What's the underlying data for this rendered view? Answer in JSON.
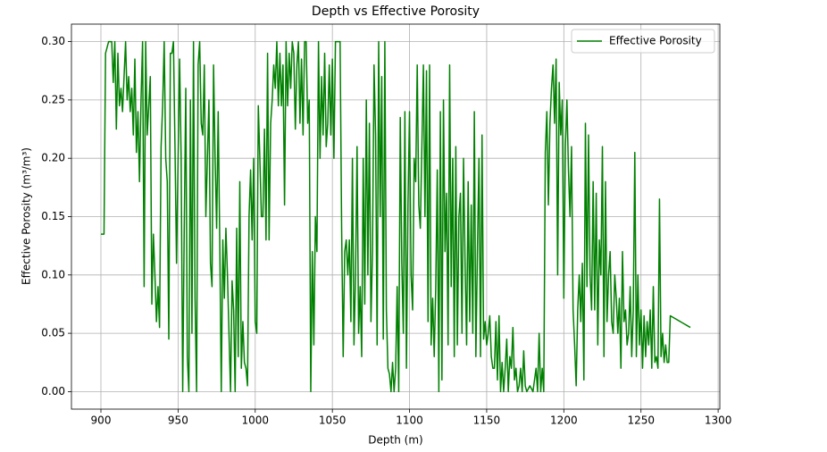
{
  "chart_data": {
    "type": "line",
    "title": "Depth vs Effective Porosity",
    "x_label": "Depth (m)",
    "y_label": "Effective Porosity (m³/m³)",
    "x": [
      900,
      902,
      903,
      905,
      907,
      908,
      909,
      910,
      911,
      912,
      913,
      914,
      916,
      917,
      918,
      919,
      920,
      921,
      922,
      923,
      924,
      925,
      926,
      927,
      928,
      929,
      930,
      932,
      933,
      934,
      935,
      936,
      937,
      938,
      939,
      940,
      941,
      942,
      943,
      944,
      945,
      946,
      947,
      948,
      949,
      951,
      952,
      953,
      954,
      955,
      956,
      957,
      958,
      959,
      960,
      961,
      962,
      963,
      964,
      965,
      966,
      967,
      968,
      969,
      970,
      971,
      972,
      973,
      974,
      975,
      976,
      977,
      978,
      979,
      980,
      981,
      982,
      983,
      984,
      985,
      986,
      987,
      988,
      989,
      990,
      991,
      992,
      993,
      994,
      995,
      996,
      997,
      998,
      999,
      1000,
      1001,
      1002,
      1003,
      1004,
      1005,
      1006,
      1007,
      1008,
      1009,
      1010,
      1011,
      1012,
      1013,
      1014,
      1015,
      1016,
      1017,
      1018,
      1019,
      1020,
      1021,
      1022,
      1023,
      1024,
      1025,
      1026,
      1027,
      1028,
      1029,
      1030,
      1031,
      1032,
      1033,
      1034,
      1035,
      1036,
      1037,
      1038,
      1039,
      1040,
      1041,
      1042,
      1043,
      1044,
      1045,
      1046,
      1047,
      1048,
      1049,
      1050,
      1051,
      1052,
      1054,
      1055,
      1056,
      1057,
      1058,
      1059,
      1060,
      1061,
      1062,
      1063,
      1064,
      1065,
      1066,
      1067,
      1068,
      1069,
      1070,
      1071,
      1072,
      1073,
      1074,
      1075,
      1076,
      1077,
      1078,
      1079,
      1080,
      1081,
      1082,
      1083,
      1084,
      1085,
      1086,
      1087,
      1088,
      1089,
      1090,
      1091,
      1092,
      1093,
      1094,
      1095,
      1096,
      1097,
      1098,
      1099,
      1100,
      1101,
      1102,
      1103,
      1104,
      1105,
      1106,
      1107,
      1108,
      1109,
      1110,
      1111,
      1112,
      1113,
      1114,
      1115,
      1116,
      1117,
      1118,
      1119,
      1120,
      1121,
      1122,
      1123,
      1124,
      1125,
      1126,
      1127,
      1128,
      1129,
      1130,
      1131,
      1132,
      1133,
      1134,
      1135,
      1136,
      1137,
      1138,
      1139,
      1140,
      1141,
      1142,
      1143,
      1144,
      1145,
      1146,
      1147,
      1148,
      1149,
      1150,
      1151,
      1152,
      1153,
      1154,
      1155,
      1156,
      1157,
      1158,
      1159,
      1160,
      1161,
      1162,
      1163,
      1164,
      1165,
      1166,
      1167,
      1168,
      1169,
      1170,
      1171,
      1172,
      1173,
      1174,
      1175,
      1176,
      1178,
      1180,
      1182,
      1183,
      1184,
      1185,
      1186,
      1187,
      1188,
      1189,
      1190,
      1191,
      1192,
      1193,
      1194,
      1195,
      1196,
      1197,
      1198,
      1199,
      1200,
      1201,
      1202,
      1203,
      1204,
      1205,
      1206,
      1207,
      1208,
      1209,
      1210,
      1211,
      1212,
      1213,
      1214,
      1215,
      1216,
      1217,
      1218,
      1219,
      1220,
      1221,
      1222,
      1223,
      1224,
      1225,
      1226,
      1227,
      1228,
      1229,
      1230,
      1231,
      1232,
      1233,
      1234,
      1235,
      1236,
      1237,
      1238,
      1239,
      1240,
      1241,
      1242,
      1243,
      1244,
      1245,
      1246,
      1247,
      1248,
      1249,
      1250,
      1251,
      1252,
      1253,
      1254,
      1255,
      1256,
      1257,
      1258,
      1259,
      1260,
      1261,
      1262,
      1263,
      1264,
      1265,
      1266,
      1267,
      1268,
      1269,
      1282
    ],
    "series": [
      {
        "name": "Effective Porosity",
        "color": "#008000",
        "values": [
          0.135,
          0.135,
          0.29,
          0.3,
          0.3,
          0.265,
          0.3,
          0.225,
          0.29,
          0.245,
          0.26,
          0.24,
          0.3,
          0.25,
          0.27,
          0.24,
          0.26,
          0.22,
          0.285,
          0.205,
          0.24,
          0.18,
          0.25,
          0.3,
          0.09,
          0.3,
          0.22,
          0.27,
          0.075,
          0.135,
          0.1,
          0.06,
          0.09,
          0.055,
          0.21,
          0.245,
          0.3,
          0.2,
          0.18,
          0.045,
          0.29,
          0.29,
          0.3,
          0.21,
          0.11,
          0.285,
          0.2,
          0.0,
          0.14,
          0.26,
          0.03,
          0.0,
          0.25,
          0.05,
          0.3,
          0.08,
          0.0,
          0.28,
          0.3,
          0.23,
          0.22,
          0.28,
          0.15,
          0.2,
          0.25,
          0.11,
          0.09,
          0.28,
          0.2,
          0.14,
          0.24,
          0.13,
          0.0,
          0.13,
          0.08,
          0.14,
          0.1,
          0.05,
          0.0,
          0.095,
          0.07,
          0.0,
          0.14,
          0.03,
          0.18,
          0.02,
          0.06,
          0.025,
          0.02,
          0.005,
          0.15,
          0.19,
          0.13,
          0.2,
          0.06,
          0.05,
          0.245,
          0.2,
          0.15,
          0.15,
          0.225,
          0.13,
          0.29,
          0.13,
          0.23,
          0.25,
          0.28,
          0.26,
          0.3,
          0.245,
          0.29,
          0.245,
          0.28,
          0.16,
          0.3,
          0.245,
          0.29,
          0.26,
          0.3,
          0.29,
          0.225,
          0.28,
          0.3,
          0.23,
          0.285,
          0.22,
          0.3,
          0.3,
          0.23,
          0.25,
          0.0,
          0.12,
          0.04,
          0.15,
          0.12,
          0.3,
          0.2,
          0.27,
          0.22,
          0.29,
          0.21,
          0.23,
          0.28,
          0.22,
          0.285,
          0.2,
          0.3,
          0.3,
          0.3,
          0.14,
          0.03,
          0.12,
          0.13,
          0.1,
          0.13,
          0.06,
          0.2,
          0.04,
          0.1,
          0.21,
          0.05,
          0.09,
          0.03,
          0.2,
          0.075,
          0.25,
          0.1,
          0.23,
          0.06,
          0.12,
          0.28,
          0.22,
          0.04,
          0.3,
          0.15,
          0.27,
          0.045,
          0.3,
          0.07,
          0.02,
          0.015,
          0.0,
          0.025,
          0.0,
          0.02,
          0.09,
          0.0,
          0.235,
          0.11,
          0.05,
          0.24,
          0.02,
          0.16,
          0.24,
          0.1,
          0.07,
          0.2,
          0.18,
          0.28,
          0.16,
          0.14,
          0.21,
          0.28,
          0.15,
          0.275,
          0.06,
          0.28,
          0.04,
          0.08,
          0.03,
          0.09,
          0.19,
          0.0,
          0.24,
          0.01,
          0.25,
          0.12,
          0.17,
          0.04,
          0.28,
          0.09,
          0.2,
          0.03,
          0.21,
          0.04,
          0.15,
          0.17,
          0.05,
          0.2,
          0.11,
          0.04,
          0.18,
          0.06,
          0.16,
          0.05,
          0.24,
          0.03,
          0.12,
          0.2,
          0.03,
          0.22,
          0.045,
          0.06,
          0.04,
          0.05,
          0.065,
          0.03,
          0.02,
          0.02,
          0.06,
          0.01,
          0.065,
          0.0,
          0.025,
          0.0,
          0.02,
          0.045,
          0.0,
          0.03,
          0.02,
          0.055,
          0.01,
          0.02,
          0.0,
          0.005,
          0.02,
          0.0,
          0.035,
          0.005,
          0.0,
          0.005,
          0.0,
          0.02,
          0.0,
          0.05,
          0.0,
          0.02,
          0.0,
          0.205,
          0.24,
          0.16,
          0.23,
          0.26,
          0.28,
          0.23,
          0.285,
          0.1,
          0.265,
          0.22,
          0.25,
          0.08,
          0.21,
          0.25,
          0.19,
          0.15,
          0.21,
          0.07,
          0.04,
          0.005,
          0.07,
          0.1,
          0.06,
          0.11,
          0.01,
          0.23,
          0.09,
          0.22,
          0.1,
          0.07,
          0.18,
          0.07,
          0.17,
          0.04,
          0.13,
          0.1,
          0.21,
          0.03,
          0.18,
          0.06,
          0.1,
          0.12,
          0.06,
          0.05,
          0.1,
          0.08,
          0.05,
          0.08,
          0.02,
          0.12,
          0.06,
          0.07,
          0.04,
          0.05,
          0.09,
          0.03,
          0.07,
          0.205,
          0.03,
          0.1,
          0.04,
          0.07,
          0.02,
          0.065,
          0.03,
          0.06,
          0.04,
          0.07,
          0.02,
          0.09,
          0.025,
          0.03,
          0.02,
          0.165,
          0.03,
          0.05,
          0.025,
          0.04,
          0.025,
          0.025,
          0.065,
          0.055
        ]
      }
    ],
    "xlim": [
      880.9,
      1301.1
    ],
    "ylim": [
      -0.015,
      0.315
    ],
    "xticks": [
      900,
      950,
      1000,
      1050,
      1100,
      1150,
      1200,
      1250,
      1300
    ],
    "yticks": [
      {
        "value": 0,
        "label": "0.00"
      },
      0.05,
      {
        "value": 0.1,
        "label": "0.10"
      },
      0.15,
      {
        "value": 0.2,
        "label": "0.20"
      },
      0.25,
      {
        "value": 0.3,
        "label": "0.30"
      }
    ],
    "grid": true,
    "legend": "upper-right"
  }
}
